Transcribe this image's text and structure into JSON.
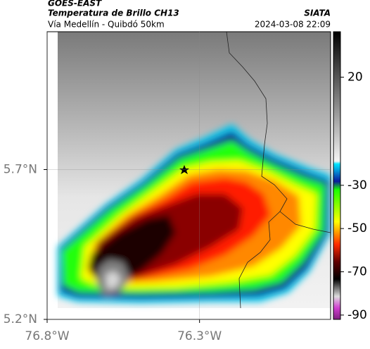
{
  "header": {
    "title": "GOES-EAST",
    "subtitle": "Temperatura de Brillo CH13",
    "route": "Vía Medellín - Quibdó 50km",
    "source": "SIATA",
    "timestamp": "2024-03-08 22:09"
  },
  "map": {
    "xlim": [
      -76.8,
      -75.87
    ],
    "ylim": [
      5.2,
      6.16
    ],
    "xticks": [
      {
        "value": -76.8,
        "label": "76.8°W"
      },
      {
        "value": -76.3,
        "label": "76.3°W"
      }
    ],
    "yticks": [
      {
        "value": 5.2,
        "label": "5.2°N"
      },
      {
        "value": 5.7,
        "label": "5.7°N"
      }
    ]
  },
  "colorbar": {
    "clim": [
      -92,
      41
    ],
    "ticks": [
      20,
      -30,
      -50,
      -70,
      -90
    ]
  }
}
